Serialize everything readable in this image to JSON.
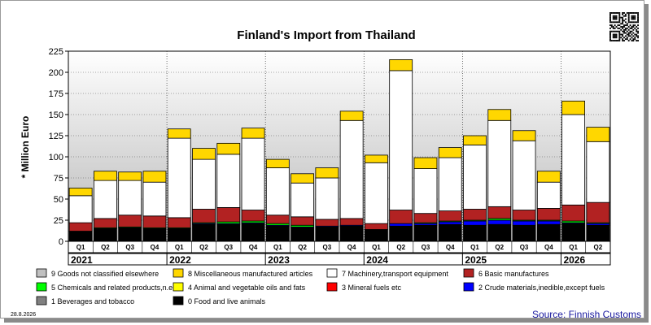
{
  "chart_data": {
    "type": "bar",
    "stacked": true,
    "title": "Finland's Import from Thailand",
    "ylabel": "* Million Euro",
    "xlabel": "",
    "ylim": [
      0,
      225
    ],
    "yticks": [
      0,
      25,
      50,
      75,
      100,
      125,
      150,
      175,
      200,
      225
    ],
    "grid": true,
    "legend_position": "bottom",
    "quarter_labels": [
      "Q1",
      "Q2",
      "Q3",
      "Q4",
      "Q1",
      "Q2",
      "Q3",
      "Q4",
      "Q1",
      "Q2",
      "Q3",
      "Q4",
      "Q1",
      "Q2",
      "Q3",
      "Q4",
      "Q1",
      "Q2",
      "Q3",
      "Q4",
      "Q1",
      "Q2"
    ],
    "year_groups": [
      {
        "label": "2021",
        "count": 4
      },
      {
        "label": "2022",
        "count": 4
      },
      {
        "label": "2023",
        "count": 4
      },
      {
        "label": "2024",
        "count": 4
      },
      {
        "label": "2025",
        "count": 4
      },
      {
        "label": "2026",
        "count": 2
      }
    ],
    "series": [
      {
        "name": "0 Food and live animals",
        "color": "#000000",
        "values": [
          12,
          15,
          16,
          15,
          15,
          20,
          20,
          21,
          18,
          16,
          17,
          18,
          14,
          18,
          19,
          20,
          19,
          20,
          19,
          20,
          21,
          19
        ]
      },
      {
        "name": "1 Beverages and tobacco",
        "color": "#808080",
        "values": [
          0,
          0,
          0,
          0,
          0,
          0,
          0,
          0,
          0,
          0,
          0,
          0,
          0,
          0,
          0,
          0,
          0,
          0,
          0,
          0,
          0,
          0
        ]
      },
      {
        "name": "2 Crude materials,inedible,except fuels",
        "color": "#0000ff",
        "values": [
          0,
          0,
          0,
          0,
          0,
          1,
          1,
          1,
          1,
          1,
          1,
          1,
          0,
          3,
          2,
          3,
          5,
          5,
          5,
          4,
          1,
          2
        ]
      },
      {
        "name": "3 Mineral fuels etc",
        "color": "#ff0000",
        "values": [
          0,
          0,
          0,
          0,
          0,
          0,
          0,
          0,
          0,
          0,
          0,
          0,
          0,
          0,
          0,
          0,
          0,
          0,
          0,
          0,
          0,
          0
        ]
      },
      {
        "name": "4 Animal and vegetable oils and fats",
        "color": "#ffff00",
        "values": [
          0,
          0,
          0,
          0,
          0,
          0,
          0,
          0,
          0,
          0,
          0,
          0,
          0,
          0,
          0,
          0,
          0,
          0,
          0,
          0,
          0,
          0
        ]
      },
      {
        "name": "5 Chemicals and related products,n.e.s.",
        "color": "#00ff00",
        "values": [
          0,
          1,
          1,
          1,
          1,
          1,
          2,
          2,
          2,
          2,
          0,
          0,
          0,
          0,
          1,
          1,
          1,
          2,
          1,
          1,
          2,
          1
        ]
      },
      {
        "name": "6 Basic manufactures",
        "color": "#b22222",
        "values": [
          10,
          11,
          14,
          14,
          12,
          16,
          17,
          13,
          10,
          10,
          8,
          8,
          7,
          16,
          11,
          12,
          13,
          14,
          12,
          14,
          19,
          24
        ]
      },
      {
        "name": "7 Machinery,transport equipment",
        "color": "#ffffff",
        "values": [
          32,
          45,
          41,
          40,
          94,
          59,
          63,
          85,
          56,
          40,
          49,
          116,
          72,
          165,
          53,
          63,
          76,
          102,
          82,
          31,
          107,
          72
        ]
      },
      {
        "name": "8 Miscellaneous manufactured articles",
        "color": "#ffd700",
        "values": [
          9,
          11,
          10,
          13,
          11,
          13,
          13,
          12,
          10,
          11,
          12,
          11,
          9,
          13,
          13,
          12,
          11,
          13,
          12,
          13,
          16,
          17
        ]
      },
      {
        "name": "9 Goods not classified elsewhere",
        "color": "#c0c0c0",
        "values": [
          0,
          0,
          0,
          0,
          0,
          0,
          0,
          0,
          0,
          0,
          0,
          0,
          0,
          0,
          0,
          0,
          0,
          0,
          0,
          0,
          0,
          0
        ]
      }
    ]
  },
  "legend_order": [
    9,
    8,
    7,
    6,
    5,
    4,
    3,
    2,
    1,
    0
  ],
  "footer": {
    "date": "28.8.2026",
    "source": "Source: Finnish Customs"
  },
  "qr_icon": "qr-code-icon"
}
